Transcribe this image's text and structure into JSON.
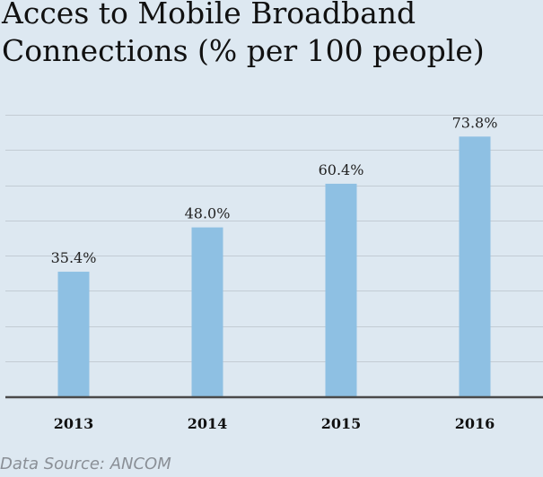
{
  "chart_data": {
    "type": "bar",
    "title": "Acces to Mobile Broadband\nConnections (% per 100 people)",
    "categories": [
      "2013",
      "2014",
      "2015",
      "2016"
    ],
    "values": [
      35.4,
      48.0,
      60.4,
      73.8
    ],
    "value_labels": [
      "35.4%",
      "48.0%",
      "60.4%",
      "73.8%"
    ],
    "ylim": [
      0,
      80
    ],
    "grid": true,
    "colors": {
      "bar": "#8ec0e3",
      "grid": "#c3ccd4",
      "axis": "#4a4a4a"
    }
  },
  "source": "Data Source: ANCOM"
}
